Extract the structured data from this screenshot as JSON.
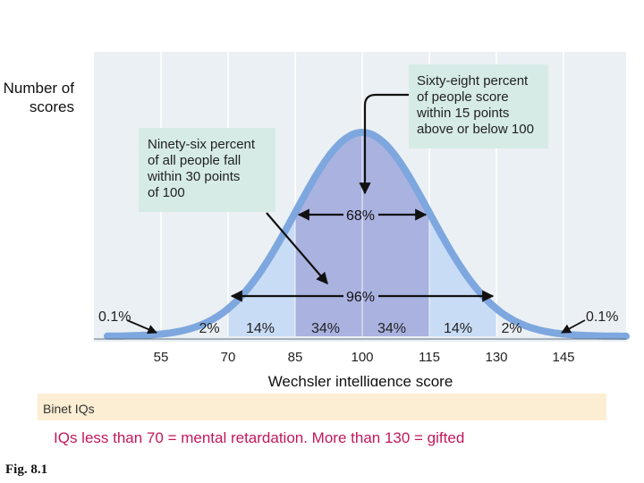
{
  "chart_data": {
    "type": "area",
    "title": "",
    "xlabel": "Wechsler intelligence score",
    "ylabel": "Number of scores",
    "x_ticks": [
      55,
      70,
      85,
      100,
      115,
      130,
      145
    ],
    "x_range": [
      40,
      160
    ],
    "distribution": {
      "kind": "normal",
      "mean": 100,
      "sd": 15
    },
    "bands": [
      {
        "from": 40,
        "to": 55,
        "percent": "0.1%"
      },
      {
        "from": 55,
        "to": 70,
        "percent": "2%"
      },
      {
        "from": 70,
        "to": 85,
        "percent": "14%"
      },
      {
        "from": 85,
        "to": 100,
        "percent": "34%"
      },
      {
        "from": 100,
        "to": 115,
        "percent": "34%"
      },
      {
        "from": 115,
        "to": 130,
        "percent": "14%"
      },
      {
        "from": 130,
        "to": 145,
        "percent": "2%"
      },
      {
        "from": 145,
        "to": 160,
        "percent": "0.1%"
      }
    ],
    "ranges": [
      {
        "from": 85,
        "to": 115,
        "label": "68%"
      },
      {
        "from": 70,
        "to": 130,
        "label": "96%"
      }
    ],
    "annotations": [
      "Sixty-eight percent of people score within 15 points above or below 100",
      "Ninety-six percent of all people fall within 30 points of 100"
    ],
    "grid": true,
    "colors": {
      "curve": "#7da7de",
      "center": "#aab2e0",
      "mid": "#c9dcf5",
      "plot_bg": "#ebf0f4",
      "note_bg": "#d6ebe6"
    }
  },
  "labels": {
    "ylabel_line1": "Number of",
    "ylabel_line2": "scores",
    "note_68": [
      "Sixty-eight percent",
      "of people score",
      "within 15 points",
      "above or below 100"
    ],
    "note_96": [
      "Ninety-six percent",
      "of all people fall",
      "within 30 points",
      "of 100"
    ],
    "binet_label": "Binet IQs"
  },
  "caption": "IQs less than 70 = mental retardation.  More than 130 = gifted",
  "figure_label": "Fig. 8.1"
}
